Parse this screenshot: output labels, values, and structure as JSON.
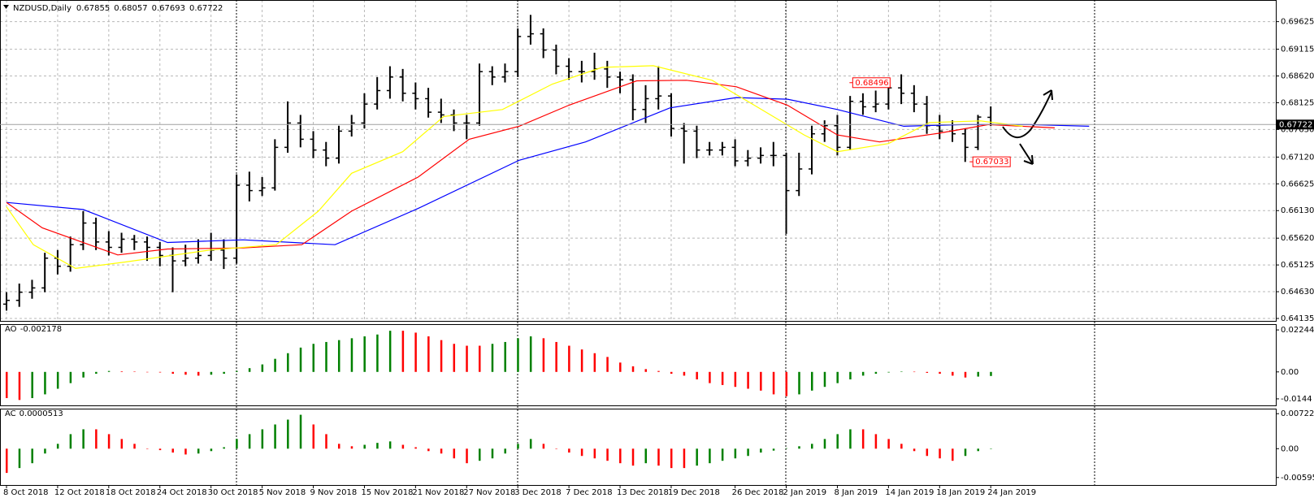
{
  "chart_data": [
    {
      "type": "ohlc",
      "title": "NZDUSD,Daily",
      "categories": [
        "8 Oct 2018",
        null,
        null,
        null,
        "12 Oct 2018",
        null,
        null,
        null,
        "18 Oct 2018",
        null,
        null,
        null,
        "24 Oct 2018",
        null,
        null,
        null,
        "30 Oct 2018",
        null,
        null,
        null,
        "5 Nov 2018",
        null,
        null,
        null,
        "9 Nov 2018",
        null,
        null,
        null,
        "15 Nov 2018",
        null,
        null,
        null,
        "21 Nov 2018",
        null,
        null,
        null,
        "27 Nov 2018",
        null,
        null,
        null,
        "3 Dec 2018",
        null,
        null,
        null,
        "7 Dec 2018",
        null,
        null,
        null,
        "13 Dec 2018",
        null,
        null,
        null,
        "19 Dec 2018",
        null,
        null,
        null,
        null,
        "26 Dec 2018",
        null,
        null,
        null,
        "2 Jan 2019",
        null,
        null,
        null,
        "8 Jan 2019",
        null,
        null,
        null,
        "14 Jan 2019",
        null,
        null,
        null,
        "18 Jan 2019",
        null,
        null,
        null,
        "24 Jan 2019"
      ],
      "open": [
        0.644,
        0.6447,
        0.6462,
        0.647,
        0.6525,
        0.651,
        0.655,
        0.659,
        0.6555,
        0.6545,
        0.656,
        0.6555,
        0.6545,
        0.653,
        0.652,
        0.6525,
        0.653,
        0.654,
        0.6525,
        0.666,
        0.665,
        0.6655,
        0.673,
        0.6775,
        0.6745,
        0.6725,
        0.671,
        0.676,
        0.6775,
        0.681,
        0.6835,
        0.686,
        0.683,
        0.682,
        0.6795,
        0.679,
        0.6775,
        0.6775,
        0.687,
        0.686,
        0.687,
        0.6935,
        0.694,
        0.691,
        0.688,
        0.687,
        0.687,
        0.6875,
        0.686,
        0.6855,
        0.68,
        0.682,
        0.6825,
        0.6765,
        0.676,
        0.6725,
        0.6725,
        0.673,
        0.6705,
        0.671,
        0.6715,
        0.6715,
        0.665,
        0.669,
        0.6755,
        0.677,
        0.673,
        0.6815,
        0.6805,
        0.681,
        0.684,
        0.683,
        0.681,
        0.677,
        0.676,
        0.6755,
        0.673,
        0.67855
      ],
      "high": [
        0.6462,
        0.6478,
        0.6485,
        0.6535,
        0.654,
        0.6565,
        0.6612,
        0.66,
        0.6575,
        0.6572,
        0.6568,
        0.6565,
        0.6555,
        0.6545,
        0.655,
        0.656,
        0.6572,
        0.656,
        0.668,
        0.6685,
        0.6675,
        0.6745,
        0.6815,
        0.679,
        0.676,
        0.674,
        0.677,
        0.679,
        0.683,
        0.686,
        0.688,
        0.6875,
        0.685,
        0.684,
        0.682,
        0.68,
        0.679,
        0.6885,
        0.688,
        0.6885,
        0.695,
        0.6975,
        0.695,
        0.692,
        0.6895,
        0.689,
        0.6905,
        0.689,
        0.687,
        0.6865,
        0.6845,
        0.688,
        0.683,
        0.6775,
        0.677,
        0.674,
        0.674,
        0.6745,
        0.6725,
        0.673,
        0.674,
        0.672,
        0.672,
        0.677,
        0.678,
        0.679,
        0.6825,
        0.683,
        0.6835,
        0.685,
        0.6865,
        0.6845,
        0.6825,
        0.679,
        0.678,
        0.6765,
        0.679,
        0.68057
      ],
      "low": [
        0.6428,
        0.6435,
        0.645,
        0.6462,
        0.6495,
        0.65,
        0.654,
        0.654,
        0.653,
        0.6535,
        0.654,
        0.652,
        0.651,
        0.6462,
        0.651,
        0.6515,
        0.652,
        0.6505,
        0.6515,
        0.663,
        0.664,
        0.665,
        0.672,
        0.673,
        0.671,
        0.6695,
        0.67,
        0.675,
        0.6765,
        0.68,
        0.682,
        0.6815,
        0.68,
        0.6785,
        0.6775,
        0.676,
        0.6745,
        0.677,
        0.6845,
        0.685,
        0.686,
        0.692,
        0.6895,
        0.6865,
        0.6855,
        0.685,
        0.6855,
        0.684,
        0.683,
        0.678,
        0.6775,
        0.68,
        0.675,
        0.67,
        0.671,
        0.6715,
        0.6715,
        0.6695,
        0.6695,
        0.67,
        0.6695,
        0.657,
        0.664,
        0.668,
        0.674,
        0.6715,
        0.6725,
        0.679,
        0.6795,
        0.68,
        0.681,
        0.6795,
        0.6755,
        0.6745,
        0.674,
        0.6703,
        0.6725,
        0.67693
      ],
      "close": [
        0.6447,
        0.6462,
        0.647,
        0.6525,
        0.651,
        0.655,
        0.659,
        0.6555,
        0.6545,
        0.656,
        0.6555,
        0.6545,
        0.653,
        0.652,
        0.6525,
        0.653,
        0.654,
        0.6525,
        0.666,
        0.665,
        0.6655,
        0.673,
        0.6775,
        0.6745,
        0.6725,
        0.671,
        0.676,
        0.6775,
        0.681,
        0.6835,
        0.686,
        0.683,
        0.682,
        0.6795,
        0.679,
        0.6775,
        0.6775,
        0.687,
        0.686,
        0.687,
        0.6935,
        0.694,
        0.691,
        0.688,
        0.687,
        0.687,
        0.6875,
        0.686,
        0.6855,
        0.68,
        0.682,
        0.6825,
        0.6765,
        0.676,
        0.6725,
        0.6725,
        0.673,
        0.6705,
        0.671,
        0.6715,
        0.6715,
        0.665,
        0.669,
        0.6755,
        0.677,
        0.673,
        0.6815,
        0.6805,
        0.681,
        0.684,
        0.683,
        0.681,
        0.677,
        0.676,
        0.6755,
        0.673,
        0.6786,
        0.67722
      ],
      "color": "#000000",
      "lines": [
        {
          "color": "#0000ff",
          "x": [
            0,
            6,
            12.6,
            18.5,
            25.7,
            32.2,
            40.1,
            45.3,
            51.9,
            57.1,
            61.1,
            65,
            70.2,
            74.8,
            80.1,
            84.7
          ],
          "values": [
            0.6628,
            0.6615,
            0.6554,
            0.6559,
            0.655,
            0.6617,
            0.6706,
            0.674,
            0.6803,
            0.6822,
            0.6819,
            0.68,
            0.6769,
            0.6772,
            0.6772,
            0.6769
          ]
        },
        {
          "color": "#ff0000",
          "x": [
            0,
            2.8,
            8.7,
            12.6,
            18.5,
            23.1,
            27,
            32.2,
            36.2,
            40.1,
            44,
            49.3,
            53.2,
            57.1,
            61.1,
            65,
            68.3,
            72.9,
            76.8,
            82
          ],
          "values": [
            0.6628,
            0.6581,
            0.6531,
            0.6542,
            0.6544,
            0.655,
            0.6612,
            0.6675,
            0.6745,
            0.6769,
            0.6808,
            0.6853,
            0.6854,
            0.6842,
            0.6808,
            0.6753,
            0.674,
            0.6756,
            0.6772,
            0.6766
          ]
        },
        {
          "color": "#ffff00",
          "x": [
            0,
            2.1,
            5.4,
            9.3,
            15.9,
            21.1,
            24.4,
            27,
            31,
            34.2,
            38.8,
            42.7,
            46.6,
            50.6,
            55.2,
            58.5,
            62.4,
            65,
            69,
            72.2,
            76.2,
            79.5
          ],
          "values": [
            0.662,
            0.655,
            0.6506,
            0.6518,
            0.654,
            0.655,
            0.6612,
            0.6682,
            0.6722,
            0.6787,
            0.68,
            0.6847,
            0.6878,
            0.6881,
            0.6854,
            0.6808,
            0.6753,
            0.6722,
            0.6737,
            0.6776,
            0.6779,
            0.6769
          ]
        }
      ],
      "annotations": [
        {
          "value": 0.68496
        },
        {
          "value": 0.67033
        }
      ],
      "ylim": [
        0.6409,
        0.6995
      ],
      "yticks": [
        0.69625,
        0.69115,
        {
          "value": 0.6862,
          "label": "0.68620"
        },
        0.68125,
        {
          "value": 0.6763,
          "label": "0.67630"
        },
        {
          "value": 0.6712,
          "label": "0.67120"
        },
        0.66625,
        {
          "value": 0.6613,
          "label": "0.66130"
        },
        {
          "value": 0.6562,
          "label": "0.65620"
        },
        0.65125,
        {
          "value": 0.6463,
          "label": "0.64630"
        },
        0.64135
      ],
      "grid": true
    },
    {
      "type": "histogram",
      "title": "AO",
      "up_color": "#008000",
      "down_color": "#ff0000",
      "values": [
        -0.014,
        -0.015,
        -0.014,
        -0.012,
        -0.009,
        -0.006,
        -0.003,
        -0.001,
        0.0005,
        0.0003,
        0.0002,
        0,
        -0.0003,
        -0.001,
        -0.0015,
        -0.002,
        -0.0015,
        -0.001,
        0.0005,
        0.002,
        0.004,
        0.007,
        0.01,
        0.013,
        0.015,
        0.016,
        0.017,
        0.018,
        0.019,
        0.02,
        0.022,
        0.022,
        0.021,
        0.019,
        0.017,
        0.015,
        0.014,
        0.014,
        0.015,
        0.016,
        0.018,
        0.019,
        0.018,
        0.016,
        0.014,
        0.012,
        0.01,
        0.008,
        0.005,
        0.003,
        0.0015,
        0.0005,
        -0.001,
        -0.002,
        -0.004,
        -0.006,
        -0.007,
        -0.008,
        -0.009,
        -0.01,
        -0.012,
        -0.013,
        -0.012,
        -0.01,
        -0.008,
        -0.006,
        -0.004,
        -0.002,
        -0.001,
        -0.0003,
        0.0002,
        0.0001,
        -0.0005,
        -0.001,
        -0.002,
        -0.003,
        -0.0025,
        -0.002178
      ],
      "ylim": [
        -0.0179,
        0.0251
      ],
      "yticks": [
        0.022445,
        {
          "value": 0,
          "label": "0.00"
        },
        -0.0144
      ],
      "grid": false
    },
    {
      "type": "histogram",
      "title": "AC",
      "up_color": "#008000",
      "down_color": "#ff0000",
      "values": [
        -0.005,
        -0.004,
        -0.003,
        -0.001,
        0.001,
        0.003,
        0.004,
        0.004,
        0.003,
        0.002,
        0.001,
        0,
        -0.0003,
        -0.0008,
        -0.0012,
        -0.001,
        -0.0005,
        0.0003,
        0.002,
        0.003,
        0.004,
        0.005,
        0.006,
        0.007,
        0.005,
        0.003,
        0.001,
        0.0005,
        0.0008,
        0.0012,
        0.0015,
        0.0008,
        0.0003,
        -0.0005,
        -0.001,
        -0.002,
        -0.003,
        -0.0025,
        -0.002,
        -0.001,
        0.001,
        0.002,
        0.001,
        0,
        -0.0008,
        -0.0015,
        -0.002,
        -0.0025,
        -0.003,
        -0.0035,
        -0.003,
        -0.0035,
        -0.004,
        -0.004,
        -0.0035,
        -0.003,
        -0.0025,
        -0.002,
        -0.0015,
        -0.0008,
        -0.0004,
        0.0001,
        0.0005,
        0.001,
        0.002,
        0.003,
        0.004,
        0.004,
        0.003,
        0.002,
        0.001,
        -0.0005,
        -0.0015,
        -0.002,
        -0.0025,
        -0.0015,
        -0.0005,
        5.13e-05
      ],
      "ylim": [
        -0.0075,
        0.0081
      ],
      "yticks": [
        0.0072263,
        {
          "value": 0,
          "label": "0.00"
        },
        -0.005953
      ],
      "grid": false
    }
  ]
}
